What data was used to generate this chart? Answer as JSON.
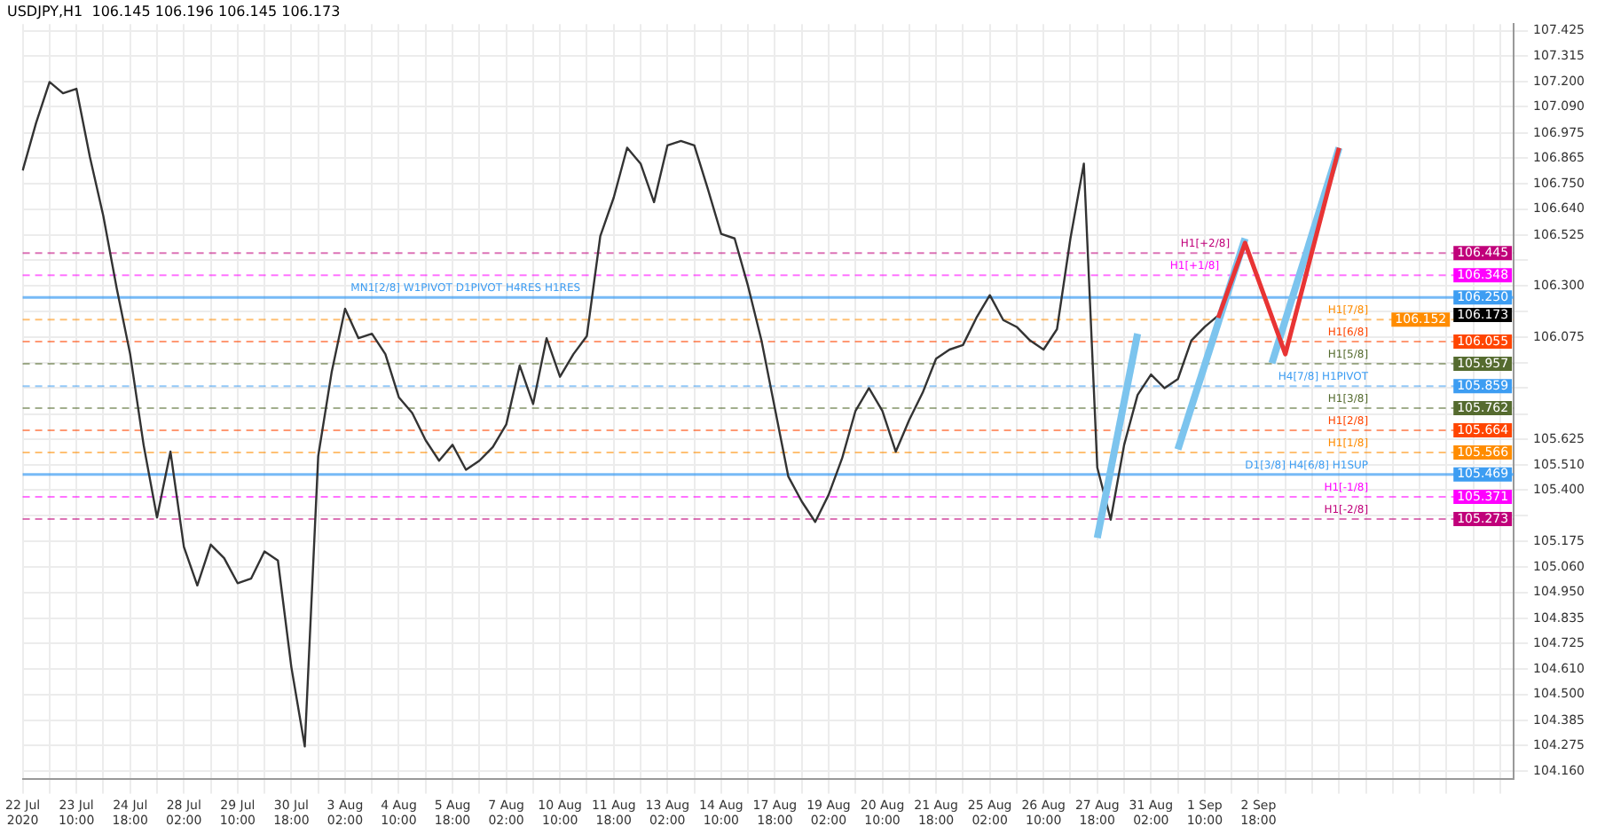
{
  "chart_data": {
    "type": "line",
    "title": "USDJPY,H1  106.145 106.196 106.145 106.173",
    "marker": "none",
    "grid": true,
    "legend": false,
    "categories": [
      "22 Jul 2020",
      null,
      null,
      null,
      "23 Jul 10:00",
      null,
      null,
      null,
      "24 Jul 18:00",
      null,
      null,
      null,
      "28 Jul 02:00",
      null,
      null,
      null,
      "29 Jul 10:00",
      null,
      null,
      null,
      "30 Jul 18:00",
      null,
      null,
      null,
      "3 Aug 02:00",
      null,
      null,
      null,
      "4 Aug 10:00",
      null,
      null,
      null,
      "5 Aug 18:00",
      null,
      null,
      null,
      "7 Aug 02:00",
      null,
      null,
      null,
      "10 Aug 10:00",
      null,
      null,
      null,
      "11 Aug 18:00",
      null,
      null,
      null,
      "13 Aug 02:00",
      null,
      null,
      null,
      "14 Aug 10:00",
      null,
      null,
      null,
      "17 Aug 18:00",
      null,
      null,
      null,
      "19 Aug 02:00",
      null,
      null,
      null,
      "20 Aug 10:00",
      null,
      null,
      null,
      "21 Aug 18:00",
      null,
      null,
      null,
      "25 Aug 02:00",
      null,
      null,
      null,
      "26 Aug 10:00",
      null,
      null,
      null,
      "27 Aug 18:00",
      null,
      null,
      null,
      "31 Aug 02:00",
      null,
      null,
      null,
      "1 Sep 10:00",
      null,
      null,
      null,
      "2 Sep 18:00",
      null,
      null,
      null,
      null,
      null,
      null,
      null,
      null,
      null,
      null,
      null,
      null,
      null,
      null,
      null,
      null,
      null,
      null,
      null
    ],
    "ylim": [
      104.125,
      107.455
    ],
    "yticks": [
      107.425,
      107.315,
      {
        "value": 107.2,
        "label": "107.200"
      },
      {
        "value": 107.09,
        "label": "107.090"
      },
      106.975,
      106.865,
      {
        "value": 106.75,
        "label": "106.750"
      },
      {
        "value": 106.64,
        "label": "106.640"
      },
      106.525,
      {
        "value": 106.415,
        "label": null
      },
      {
        "value": 106.3,
        "label": "106.300"
      },
      {
        "value": 106.19,
        "label": null
      },
      106.075,
      {
        "value": 105.96,
        "label": null
      },
      {
        "value": 105.85,
        "label": null
      },
      {
        "value": 105.735,
        "label": null
      },
      105.625,
      {
        "value": 105.51,
        "label": "105.510"
      },
      {
        "value": 105.4,
        "label": "105.400"
      },
      {
        "value": 105.29,
        "label": null
      },
      105.175,
      {
        "value": 105.06,
        "label": "105.060"
      },
      {
        "value": 104.95,
        "label": "104.950"
      },
      104.835,
      104.725,
      {
        "value": 104.61,
        "label": "104.610"
      },
      {
        "value": 104.5,
        "label": "104.500"
      },
      104.385,
      104.275,
      {
        "value": 104.16,
        "label": "104.160"
      }
    ],
    "ref_lines": [
      {
        "axis": "y",
        "value": 106.445,
        "label": "H1[+2/8]",
        "color": "#c0007a",
        "line_style": "dashed"
      },
      {
        "axis": "y",
        "value": 106.348,
        "label": "H1[+1/8]",
        "color": "#ff00ff",
        "line_style": "dashed"
      },
      {
        "axis": "y",
        "value": 106.25,
        "label": "MN1[2/8] W1PIVOT D1PIVOT H4RES H1RES",
        "color": "#3d9df2",
        "line_style": "solid"
      },
      {
        "axis": "y",
        "value": 106.152,
        "label": "H1[7/8]",
        "color": "#ff8c00",
        "line_style": "dashed"
      },
      {
        "axis": "y",
        "value": 106.055,
        "label": "H1[6/8]",
        "color": "#ff4500",
        "line_style": "dashed"
      },
      {
        "axis": "y",
        "value": 105.957,
        "label": "H1[5/8]",
        "color": "#556b2f",
        "line_style": "dashed"
      },
      {
        "axis": "y",
        "value": 105.859,
        "label": "H4[7/8] H1PIVOT",
        "color": "#3d9df2",
        "line_style": "dashed"
      },
      {
        "axis": "y",
        "value": 105.762,
        "label": "H1[3/8]",
        "color": "#556b2f",
        "line_style": "dashed"
      },
      {
        "axis": "y",
        "value": 105.664,
        "label": "H1[2/8]",
        "color": "#ff4500",
        "line_style": "dashed"
      },
      {
        "axis": "y",
        "value": 105.566,
        "label": "H1[1/8]",
        "color": "#ff8c00",
        "line_style": "dashed"
      },
      {
        "axis": "y",
        "value": 105.469,
        "label": "D1[3/8] H4[6/8] H1SUP",
        "color": "#3d9df2",
        "line_style": "solid"
      },
      {
        "axis": "y",
        "value": 105.371,
        "label": "H1[-1/8]",
        "color": "#ff00ff",
        "line_style": "dashed"
      },
      {
        "axis": "y",
        "value": 105.273,
        "label": "H1[-2/8]",
        "color": "#c0007a",
        "line_style": "dashed"
      }
    ],
    "annotations": [
      {
        "text": "106.445",
        "y": 106.445
      },
      {
        "text": "106.348",
        "y": 106.348
      },
      {
        "text": "106.250",
        "y": 106.25
      },
      {
        "text": "106.173",
        "y": 106.173
      },
      {
        "text": "106.152",
        "y": 106.152
      },
      {
        "text": "106.055",
        "y": 106.055
      },
      {
        "text": "105.957",
        "y": 105.957
      },
      {
        "text": "105.859",
        "y": 105.859
      },
      {
        "text": "105.762",
        "y": 105.762
      },
      {
        "text": "105.664",
        "y": 105.664
      },
      {
        "text": "105.566",
        "y": 105.566
      },
      {
        "text": "105.469",
        "y": 105.469
      },
      {
        "text": "105.371",
        "y": 105.371
      },
      {
        "text": "105.273",
        "y": 105.273
      }
    ],
    "series": [
      {
        "color": "#333333",
        "values": [
          106.81,
          107.02,
          107.2,
          107.15,
          107.17,
          106.87,
          106.61,
          106.29,
          106.0,
          105.6,
          105.28,
          105.57,
          105.15,
          104.98,
          105.16,
          105.1,
          104.99,
          105.01,
          105.13,
          105.09,
          104.62,
          104.27,
          105.55,
          105.92,
          106.2,
          106.07,
          106.09,
          106.0,
          105.81,
          105.74,
          105.62,
          105.53,
          105.6,
          105.49,
          105.53,
          105.59,
          105.69,
          105.95,
          105.78,
          106.07,
          105.9,
          106.0,
          106.08,
          106.52,
          106.69,
          106.91,
          106.84,
          106.67,
          106.92,
          106.94,
          106.92,
          106.73,
          106.53,
          106.51,
          106.3,
          106.06,
          105.76,
          105.46,
          105.35,
          105.26,
          105.38,
          105.54,
          105.75,
          105.85,
          105.75,
          105.57,
          105.71,
          105.83,
          105.98,
          106.02,
          106.04,
          106.16,
          106.26,
          106.15,
          106.12,
          106.06,
          106.02,
          106.11,
          106.51,
          106.84,
          105.5,
          105.27,
          105.6,
          105.82,
          105.91,
          105.85,
          105.89,
          106.06,
          106.12,
          106.17,
          null,
          null,
          null,
          null,
          null,
          null,
          null,
          null,
          null,
          null,
          null,
          null,
          null,
          null,
          null,
          null,
          null,
          null,
          null,
          null,
          null,
          null
        ]
      },
      {
        "color": "#7cc4ee",
        "values": [
          null,
          null,
          null,
          null,
          null,
          null,
          null,
          null,
          null,
          null,
          null,
          null,
          null,
          null,
          null,
          null,
          null,
          null,
          null,
          null,
          null,
          null,
          null,
          null,
          null,
          null,
          null,
          null,
          null,
          null,
          null,
          null,
          null,
          null,
          null,
          null,
          null,
          null,
          null,
          null,
          null,
          null,
          null,
          null,
          null,
          null,
          null,
          null,
          null,
          null,
          null,
          null,
          null,
          null,
          null,
          null,
          null,
          null,
          null,
          null,
          null,
          null,
          null,
          null,
          null,
          null,
          null,
          null,
          null,
          null,
          null,
          null,
          null,
          null,
          null,
          null,
          null,
          null,
          null,
          null,
          105.19,
          null,
          null,
          106.09,
          null,
          null,
          null,
          null,
          null,
          null,
          null,
          null,
          null,
          null,
          null,
          null,
          null,
          null,
          null,
          null,
          null,
          null,
          null,
          null,
          null,
          null,
          null,
          null,
          null,
          null,
          null,
          null
        ]
      },
      {
        "color": "#7cc4ee",
        "values": [
          null,
          null,
          null,
          null,
          null,
          null,
          null,
          null,
          null,
          null,
          null,
          null,
          null,
          null,
          null,
          null,
          null,
          null,
          null,
          null,
          null,
          null,
          null,
          null,
          null,
          null,
          null,
          null,
          null,
          null,
          null,
          null,
          null,
          null,
          null,
          null,
          null,
          null,
          null,
          null,
          null,
          null,
          null,
          null,
          null,
          null,
          null,
          null,
          null,
          null,
          null,
          null,
          null,
          null,
          null,
          null,
          null,
          null,
          null,
          null,
          null,
          null,
          null,
          null,
          null,
          null,
          null,
          null,
          null,
          null,
          null,
          null,
          null,
          null,
          null,
          null,
          null,
          null,
          null,
          null,
          null,
          null,
          null,
          null,
          null,
          null,
          105.58,
          null,
          null,
          null,
          null,
          106.51,
          null,
          null,
          null,
          null,
          null,
          null,
          null,
          null,
          null,
          null,
          null,
          null,
          null,
          null,
          null,
          null,
          null,
          null,
          null,
          null
        ]
      },
      {
        "color": "#7cc4ee",
        "values": [
          null,
          null,
          null,
          null,
          null,
          null,
          null,
          null,
          null,
          null,
          null,
          null,
          null,
          null,
          null,
          null,
          null,
          null,
          null,
          null,
          null,
          null,
          null,
          null,
          null,
          null,
          null,
          null,
          null,
          null,
          null,
          null,
          null,
          null,
          null,
          null,
          null,
          null,
          null,
          null,
          null,
          null,
          null,
          null,
          null,
          null,
          null,
          null,
          null,
          null,
          null,
          null,
          null,
          null,
          null,
          null,
          null,
          null,
          null,
          null,
          null,
          null,
          null,
          null,
          null,
          null,
          null,
          null,
          null,
          null,
          null,
          null,
          null,
          null,
          null,
          null,
          null,
          null,
          null,
          null,
          null,
          null,
          null,
          null,
          null,
          null,
          null,
          null,
          null,
          null,
          null,
          null,
          null,
          105.96,
          null,
          null,
          null,
          null,
          106.91,
          null,
          null,
          null,
          null,
          null,
          null,
          null,
          null,
          null,
          null,
          null,
          null,
          null
        ]
      },
      {
        "color": "#e83434",
        "values": [
          null,
          null,
          null,
          null,
          null,
          null,
          null,
          null,
          null,
          null,
          null,
          null,
          null,
          null,
          null,
          null,
          null,
          null,
          null,
          null,
          null,
          null,
          null,
          null,
          null,
          null,
          null,
          null,
          null,
          null,
          null,
          null,
          null,
          null,
          null,
          null,
          null,
          null,
          null,
          null,
          null,
          null,
          null,
          null,
          null,
          null,
          null,
          null,
          null,
          null,
          null,
          null,
          null,
          null,
          null,
          null,
          null,
          null,
          null,
          null,
          null,
          null,
          null,
          null,
          null,
          null,
          null,
          null,
          null,
          null,
          null,
          null,
          null,
          null,
          null,
          null,
          null,
          null,
          null,
          null,
          null,
          null,
          null,
          null,
          null,
          null,
          null,
          null,
          null,
          106.16,
          null,
          106.49,
          null,
          null,
          106.0,
          null,
          null,
          null,
          106.91,
          null,
          null,
          null,
          null,
          null,
          null,
          null,
          null,
          null,
          null,
          null,
          null,
          null
        ]
      }
    ]
  }
}
